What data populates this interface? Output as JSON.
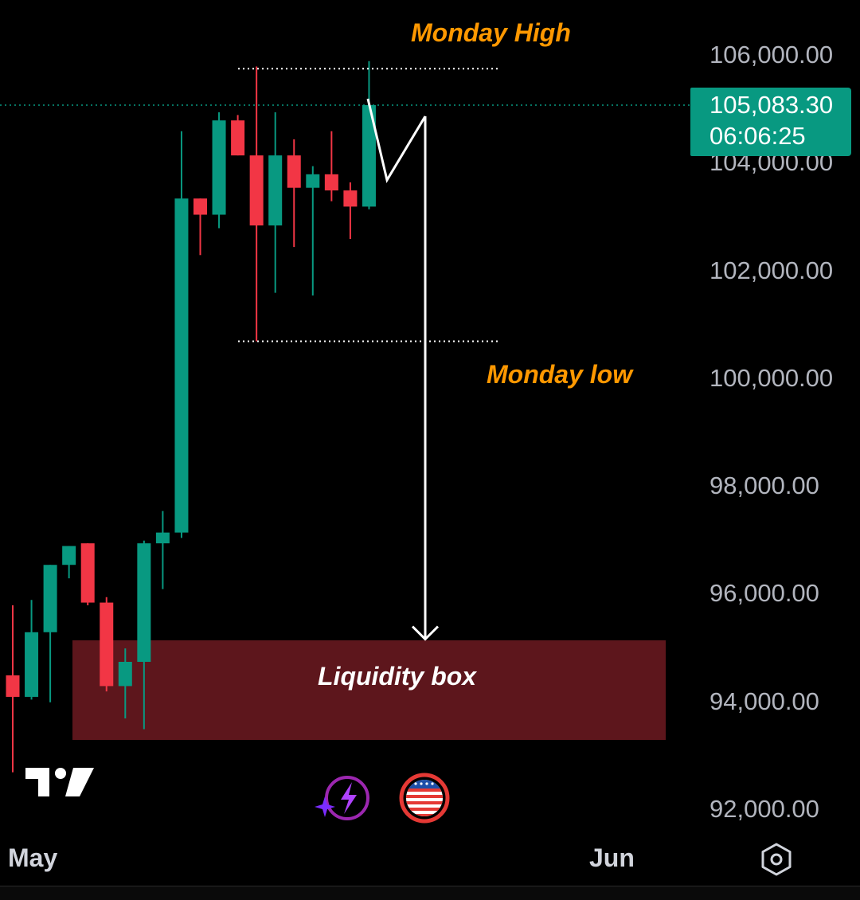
{
  "chart_data": {
    "type": "candlestick",
    "instrument_hint": "",
    "x_labels": [
      "May",
      "Jun"
    ],
    "y_ticks": [
      92000,
      94000,
      96000,
      98000,
      100000,
      102000,
      104000,
      106000
    ],
    "y_tick_labels": [
      "92,000.00",
      "94,000.00",
      "96,000.00",
      "98,000.00",
      "100,000.00",
      "102,000.00",
      "104,000.00",
      "106,000.00"
    ],
    "ylim": [
      91500,
      106500
    ],
    "up_color": "#089981",
    "down_color": "#f23645",
    "candles": [
      {
        "o": 94500,
        "h": 95800,
        "l": 92700,
        "c": 94100
      },
      {
        "o": 94100,
        "h": 95900,
        "l": 94050,
        "c": 95300
      },
      {
        "o": 95300,
        "h": 96500,
        "l": 94000,
        "c": 96550
      },
      {
        "o": 96550,
        "h": 96900,
        "l": 96300,
        "c": 96900
      },
      {
        "o": 96950,
        "h": 96950,
        "l": 95800,
        "c": 95850
      },
      {
        "o": 95850,
        "h": 95950,
        "l": 94200,
        "c": 94300
      },
      {
        "o": 94300,
        "h": 95000,
        "l": 93700,
        "c": 94750
      },
      {
        "o": 94750,
        "h": 97000,
        "l": 93500,
        "c": 96950
      },
      {
        "o": 96950,
        "h": 97550,
        "l": 96100,
        "c": 97150
      },
      {
        "o": 97150,
        "h": 104600,
        "l": 97050,
        "c": 103350
      },
      {
        "o": 103350,
        "h": 103300,
        "l": 102300,
        "c": 103050
      },
      {
        "o": 103050,
        "h": 104950,
        "l": 102800,
        "c": 104800
      },
      {
        "o": 104800,
        "h": 104900,
        "l": 104300,
        "c": 104150
      },
      {
        "o": 104150,
        "h": 105800,
        "l": 100700,
        "c": 102850
      },
      {
        "o": 102850,
        "h": 104950,
        "l": 101600,
        "c": 104150
      },
      {
        "o": 104150,
        "h": 104450,
        "l": 102450,
        "c": 103550
      },
      {
        "o": 103550,
        "h": 103950,
        "l": 101550,
        "c": 103800
      },
      {
        "o": 103800,
        "h": 104600,
        "l": 103300,
        "c": 103500
      },
      {
        "o": 103500,
        "h": 103650,
        "l": 102600,
        "c": 103200
      },
      {
        "o": 103200,
        "h": 105900,
        "l": 103150,
        "c": 105083.3
      }
    ],
    "monday_high": 105760,
    "monday_low": 100700,
    "liquidity_box": {
      "from": 93300,
      "to": 95150
    },
    "projection_target": 95200,
    "current_price": 105083.3
  },
  "price_badge": {
    "price": "105,083.30",
    "countdown": "06:06:25",
    "color": "#089981"
  },
  "annotations": {
    "monday_high": "Monday High",
    "monday_low": "Monday low",
    "liquidity_box": "Liquidity box",
    "label_color": "#ff9800",
    "box_color": "#5d161c"
  },
  "time_axis": {
    "left": "May",
    "right": "Jun"
  },
  "icons": {
    "logo": "tradingview-logo-icon",
    "ai": "sparkle-lightning-icon",
    "flag": "us-flag-icon",
    "settings": "settings-hexagon-icon"
  }
}
